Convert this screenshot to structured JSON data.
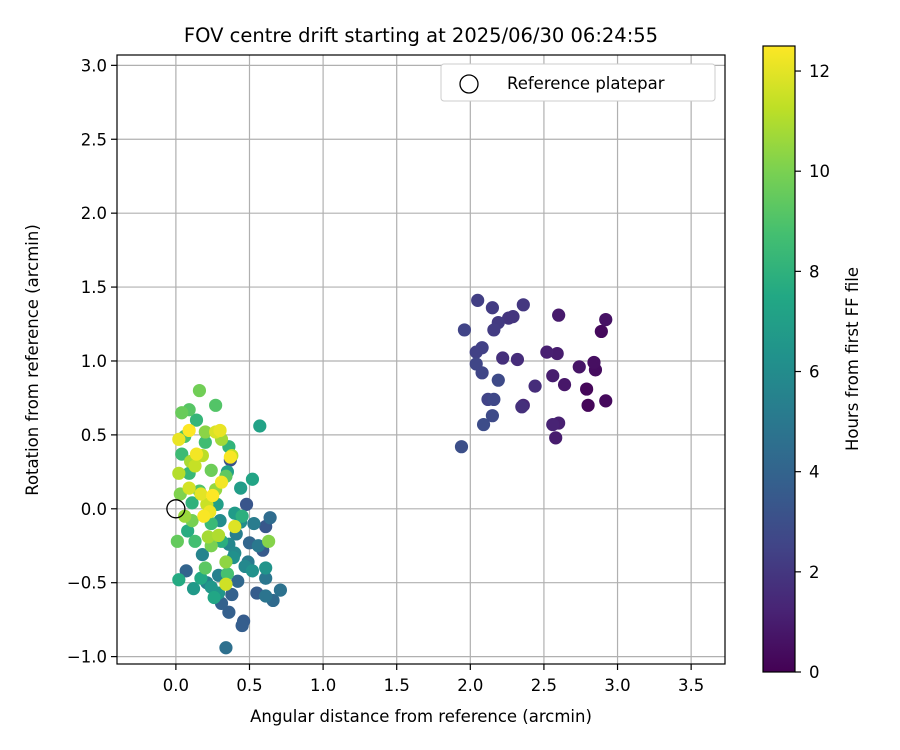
{
  "chart_data": {
    "type": "scatter",
    "title": "FOV centre drift starting at 2025/06/30 06:24:55",
    "xlabel": "Angular distance from reference (arcmin)",
    "ylabel": "Rotation from reference (arcmin)",
    "xlim": [
      -0.4,
      3.73
    ],
    "ylim": [
      -1.05,
      3.07
    ],
    "xticks": [
      "0.0",
      "0.5",
      "1.0",
      "1.5",
      "2.0",
      "2.5",
      "3.0",
      "3.5"
    ],
    "yticks": [
      "−1.0",
      "−0.5",
      "0.0",
      "0.5",
      "1.0",
      "1.5",
      "2.0",
      "2.5",
      "3.0"
    ],
    "grid": true,
    "legend": {
      "placement": "top-right",
      "entries": [
        "Reference platepar"
      ]
    },
    "reference_point": {
      "x": 0.0,
      "y": 0.0
    },
    "colorbar": {
      "label": "Hours from first FF file",
      "range": [
        0,
        12.5
      ],
      "ticks": [
        "0",
        "2",
        "4",
        "6",
        "8",
        "10",
        "12"
      ],
      "colormap": "viridis"
    },
    "colormap_stops": [
      "#440154",
      "#482475",
      "#414487",
      "#355f8d",
      "#2a788e",
      "#21918c",
      "#22a884",
      "#44bf70",
      "#7ad151",
      "#bddf26",
      "#fde725"
    ],
    "points": [
      {
        "x": 2.8,
        "y": 0.7,
        "h": 0.2
      },
      {
        "x": 2.92,
        "y": 0.73,
        "h": 0.3
      },
      {
        "x": 2.79,
        "y": 0.81,
        "h": 0.2
      },
      {
        "x": 2.85,
        "y": 0.94,
        "h": 0.4
      },
      {
        "x": 2.84,
        "y": 0.99,
        "h": 0.5
      },
      {
        "x": 2.89,
        "y": 1.2,
        "h": 0.3
      },
      {
        "x": 2.92,
        "y": 1.28,
        "h": 0.6
      },
      {
        "x": 2.74,
        "y": 0.96,
        "h": 0.7
      },
      {
        "x": 2.64,
        "y": 0.84,
        "h": 0.8
      },
      {
        "x": 2.6,
        "y": 1.31,
        "h": 0.9
      },
      {
        "x": 2.59,
        "y": 1.05,
        "h": 1.0
      },
      {
        "x": 2.52,
        "y": 1.06,
        "h": 1.1
      },
      {
        "x": 2.56,
        "y": 0.9,
        "h": 1.0
      },
      {
        "x": 2.6,
        "y": 0.58,
        "h": 1.1
      },
      {
        "x": 2.56,
        "y": 0.57,
        "h": 1.2
      },
      {
        "x": 2.58,
        "y": 0.48,
        "h": 1.0
      },
      {
        "x": 2.44,
        "y": 0.83,
        "h": 1.6
      },
      {
        "x": 2.36,
        "y": 0.7,
        "h": 1.4
      },
      {
        "x": 2.35,
        "y": 0.69,
        "h": 1.7
      },
      {
        "x": 2.32,
        "y": 1.01,
        "h": 1.6
      },
      {
        "x": 2.22,
        "y": 1.02,
        "h": 1.7
      },
      {
        "x": 2.26,
        "y": 1.29,
        "h": 1.9
      },
      {
        "x": 2.29,
        "y": 1.3,
        "h": 1.9
      },
      {
        "x": 2.36,
        "y": 1.38,
        "h": 2.0
      },
      {
        "x": 2.19,
        "y": 1.26,
        "h": 2.1
      },
      {
        "x": 2.16,
        "y": 1.21,
        "h": 2.2
      },
      {
        "x": 2.15,
        "y": 1.36,
        "h": 2.2
      },
      {
        "x": 2.05,
        "y": 1.41,
        "h": 2.3
      },
      {
        "x": 1.96,
        "y": 1.21,
        "h": 2.5
      },
      {
        "x": 2.08,
        "y": 1.09,
        "h": 2.4
      },
      {
        "x": 2.04,
        "y": 1.06,
        "h": 2.4
      },
      {
        "x": 2.04,
        "y": 0.98,
        "h": 2.6
      },
      {
        "x": 2.08,
        "y": 0.92,
        "h": 2.6
      },
      {
        "x": 2.12,
        "y": 0.74,
        "h": 2.5
      },
      {
        "x": 2.16,
        "y": 0.74,
        "h": 2.7
      },
      {
        "x": 2.19,
        "y": 0.87,
        "h": 2.8
      },
      {
        "x": 2.15,
        "y": 0.63,
        "h": 2.8
      },
      {
        "x": 2.09,
        "y": 0.57,
        "h": 2.9
      },
      {
        "x": 1.94,
        "y": 0.42,
        "h": 3.0
      },
      {
        "x": 0.37,
        "y": 0.33,
        "h": 3.2
      },
      {
        "x": 0.48,
        "y": 0.03,
        "h": 3.3
      },
      {
        "x": 0.61,
        "y": -0.12,
        "h": 3.4
      },
      {
        "x": 0.59,
        "y": -0.28,
        "h": 3.5
      },
      {
        "x": 0.55,
        "y": -0.57,
        "h": 3.6
      },
      {
        "x": 0.46,
        "y": -0.76,
        "h": 3.6
      },
      {
        "x": 0.45,
        "y": -0.79,
        "h": 3.7
      },
      {
        "x": 0.36,
        "y": -0.7,
        "h": 3.8
      },
      {
        "x": 0.31,
        "y": -0.64,
        "h": 3.9
      },
      {
        "x": 0.38,
        "y": -0.58,
        "h": 3.9
      },
      {
        "x": 0.07,
        "y": -0.42,
        "h": 4.0
      },
      {
        "x": 0.5,
        "y": -0.23,
        "h": 4.1
      },
      {
        "x": 0.42,
        "y": -0.49,
        "h": 4.2
      },
      {
        "x": 0.66,
        "y": -0.62,
        "h": 4.3
      },
      {
        "x": 0.64,
        "y": -0.06,
        "h": 4.4
      },
      {
        "x": 0.34,
        "y": -0.94,
        "h": 4.6
      },
      {
        "x": 0.71,
        "y": -0.55,
        "h": 4.7
      },
      {
        "x": 0.61,
        "y": -0.59,
        "h": 4.8
      },
      {
        "x": 0.61,
        "y": -0.47,
        "h": 4.9
      },
      {
        "x": 0.56,
        "y": -0.25,
        "h": 5.0
      },
      {
        "x": 0.49,
        "y": -0.36,
        "h": 5.1
      },
      {
        "x": 0.53,
        "y": -0.1,
        "h": 5.2
      },
      {
        "x": 0.41,
        "y": -0.17,
        "h": 5.3
      },
      {
        "x": 0.29,
        "y": -0.45,
        "h": 5.4
      },
      {
        "x": 0.21,
        "y": -0.5,
        "h": 5.5
      },
      {
        "x": 0.18,
        "y": -0.31,
        "h": 5.6
      },
      {
        "x": 0.36,
        "y": -0.24,
        "h": 5.7
      },
      {
        "x": 0.47,
        "y": -0.39,
        "h": 5.8
      },
      {
        "x": 0.4,
        "y": -0.3,
        "h": 5.9
      },
      {
        "x": 0.3,
        "y": -0.08,
        "h": 6.0
      },
      {
        "x": 0.44,
        "y": -0.09,
        "h": 6.1
      },
      {
        "x": 0.39,
        "y": -0.33,
        "h": 6.2
      },
      {
        "x": 0.52,
        "y": -0.42,
        "h": 6.3
      },
      {
        "x": 0.61,
        "y": -0.4,
        "h": 6.4
      },
      {
        "x": 0.29,
        "y": -0.57,
        "h": 6.5
      },
      {
        "x": 0.24,
        "y": -0.53,
        "h": 6.6
      },
      {
        "x": 0.12,
        "y": -0.54,
        "h": 6.7
      },
      {
        "x": 0.4,
        "y": -0.03,
        "h": 6.8
      },
      {
        "x": 0.44,
        "y": 0.14,
        "h": 6.9
      },
      {
        "x": 0.28,
        "y": 0.03,
        "h": 7.0
      },
      {
        "x": 0.35,
        "y": 0.25,
        "h": 7.1
      },
      {
        "x": 0.57,
        "y": 0.56,
        "h": 7.2
      },
      {
        "x": 0.52,
        "y": 0.2,
        "h": 7.3
      },
      {
        "x": 0.26,
        "y": -0.6,
        "h": 7.4
      },
      {
        "x": 0.17,
        "y": -0.47,
        "h": 7.5
      },
      {
        "x": 0.02,
        "y": -0.48,
        "h": 7.6
      },
      {
        "x": 0.08,
        "y": -0.15,
        "h": 7.7
      },
      {
        "x": 0.31,
        "y": -0.22,
        "h": 7.8
      },
      {
        "x": 0.45,
        "y": -0.05,
        "h": 7.9
      },
      {
        "x": 0.11,
        "y": 0.04,
        "h": 8.0
      },
      {
        "x": 0.36,
        "y": 0.42,
        "h": 8.1
      },
      {
        "x": 0.14,
        "y": 0.6,
        "h": 8.2
      },
      {
        "x": 0.09,
        "y": 0.24,
        "h": 8.3
      },
      {
        "x": 0.24,
        "y": -0.1,
        "h": 8.4
      },
      {
        "x": 0.04,
        "y": 0.37,
        "h": 8.5
      },
      {
        "x": 0.2,
        "y": 0.45,
        "h": 8.6
      },
      {
        "x": 0.13,
        "y": -0.22,
        "h": 8.7
      },
      {
        "x": 0.35,
        "y": -0.44,
        "h": 8.8
      },
      {
        "x": 0.06,
        "y": 0.49,
        "h": 8.9
      },
      {
        "x": 0.16,
        "y": 0.12,
        "h": 9.0
      },
      {
        "x": 0.27,
        "y": 0.7,
        "h": 9.1
      },
      {
        "x": 0.09,
        "y": 0.67,
        "h": 9.2
      },
      {
        "x": 0.2,
        "y": -0.4,
        "h": 9.3
      },
      {
        "x": 0.34,
        "y": 0.22,
        "h": 9.4
      },
      {
        "x": 0.01,
        "y": -0.22,
        "h": 9.5
      },
      {
        "x": 0.04,
        "y": 0.65,
        "h": 9.6
      },
      {
        "x": 0.24,
        "y": 0.26,
        "h": 9.7
      },
      {
        "x": 0.16,
        "y": 0.8,
        "h": 9.8
      },
      {
        "x": 0.11,
        "y": -0.08,
        "h": 9.9
      },
      {
        "x": 0.24,
        "y": -0.25,
        "h": 10.0
      },
      {
        "x": 0.03,
        "y": 0.1,
        "h": 10.1
      },
      {
        "x": 0.63,
        "y": -0.22,
        "h": 10.2
      },
      {
        "x": 0.2,
        "y": 0.52,
        "h": 10.3
      },
      {
        "x": 0.34,
        "y": -0.36,
        "h": 10.4
      },
      {
        "x": 0.27,
        "y": 0.13,
        "h": 10.5
      },
      {
        "x": 0.06,
        "y": -0.05,
        "h": 10.6
      },
      {
        "x": 0.31,
        "y": 0.47,
        "h": 10.7
      },
      {
        "x": 0.22,
        "y": -0.19,
        "h": 10.8
      },
      {
        "x": 0.1,
        "y": 0.32,
        "h": 10.9
      },
      {
        "x": 0.29,
        "y": -0.18,
        "h": 11.0
      },
      {
        "x": 0.02,
        "y": 0.24,
        "h": 11.1
      },
      {
        "x": 0.18,
        "y": 0.36,
        "h": 11.2
      },
      {
        "x": 0.38,
        "y": 0.36,
        "h": 11.3
      },
      {
        "x": 0.13,
        "y": 0.29,
        "h": 11.4
      },
      {
        "x": 0.21,
        "y": 0.03,
        "h": 11.5
      },
      {
        "x": 0.34,
        "y": -0.51,
        "h": 11.6
      },
      {
        "x": 0.09,
        "y": 0.14,
        "h": 11.7
      },
      {
        "x": 0.27,
        "y": 0.52,
        "h": 11.8
      },
      {
        "x": 0.4,
        "y": -0.12,
        "h": 11.9
      },
      {
        "x": 0.17,
        "y": 0.1,
        "h": 12.0
      },
      {
        "x": 0.3,
        "y": 0.53,
        "h": 12.1
      },
      {
        "x": 0.02,
        "y": 0.47,
        "h": 12.1
      },
      {
        "x": 0.23,
        "y": -0.02,
        "h": 12.2
      },
      {
        "x": 0.31,
        "y": 0.18,
        "h": 12.3
      },
      {
        "x": 0.14,
        "y": 0.37,
        "h": 12.3
      },
      {
        "x": 0.19,
        "y": -0.05,
        "h": 12.4
      },
      {
        "x": 0.37,
        "y": 0.35,
        "h": 12.4
      },
      {
        "x": 0.09,
        "y": 0.53,
        "h": 12.5
      },
      {
        "x": 0.25,
        "y": 0.09,
        "h": 12.5
      }
    ]
  }
}
